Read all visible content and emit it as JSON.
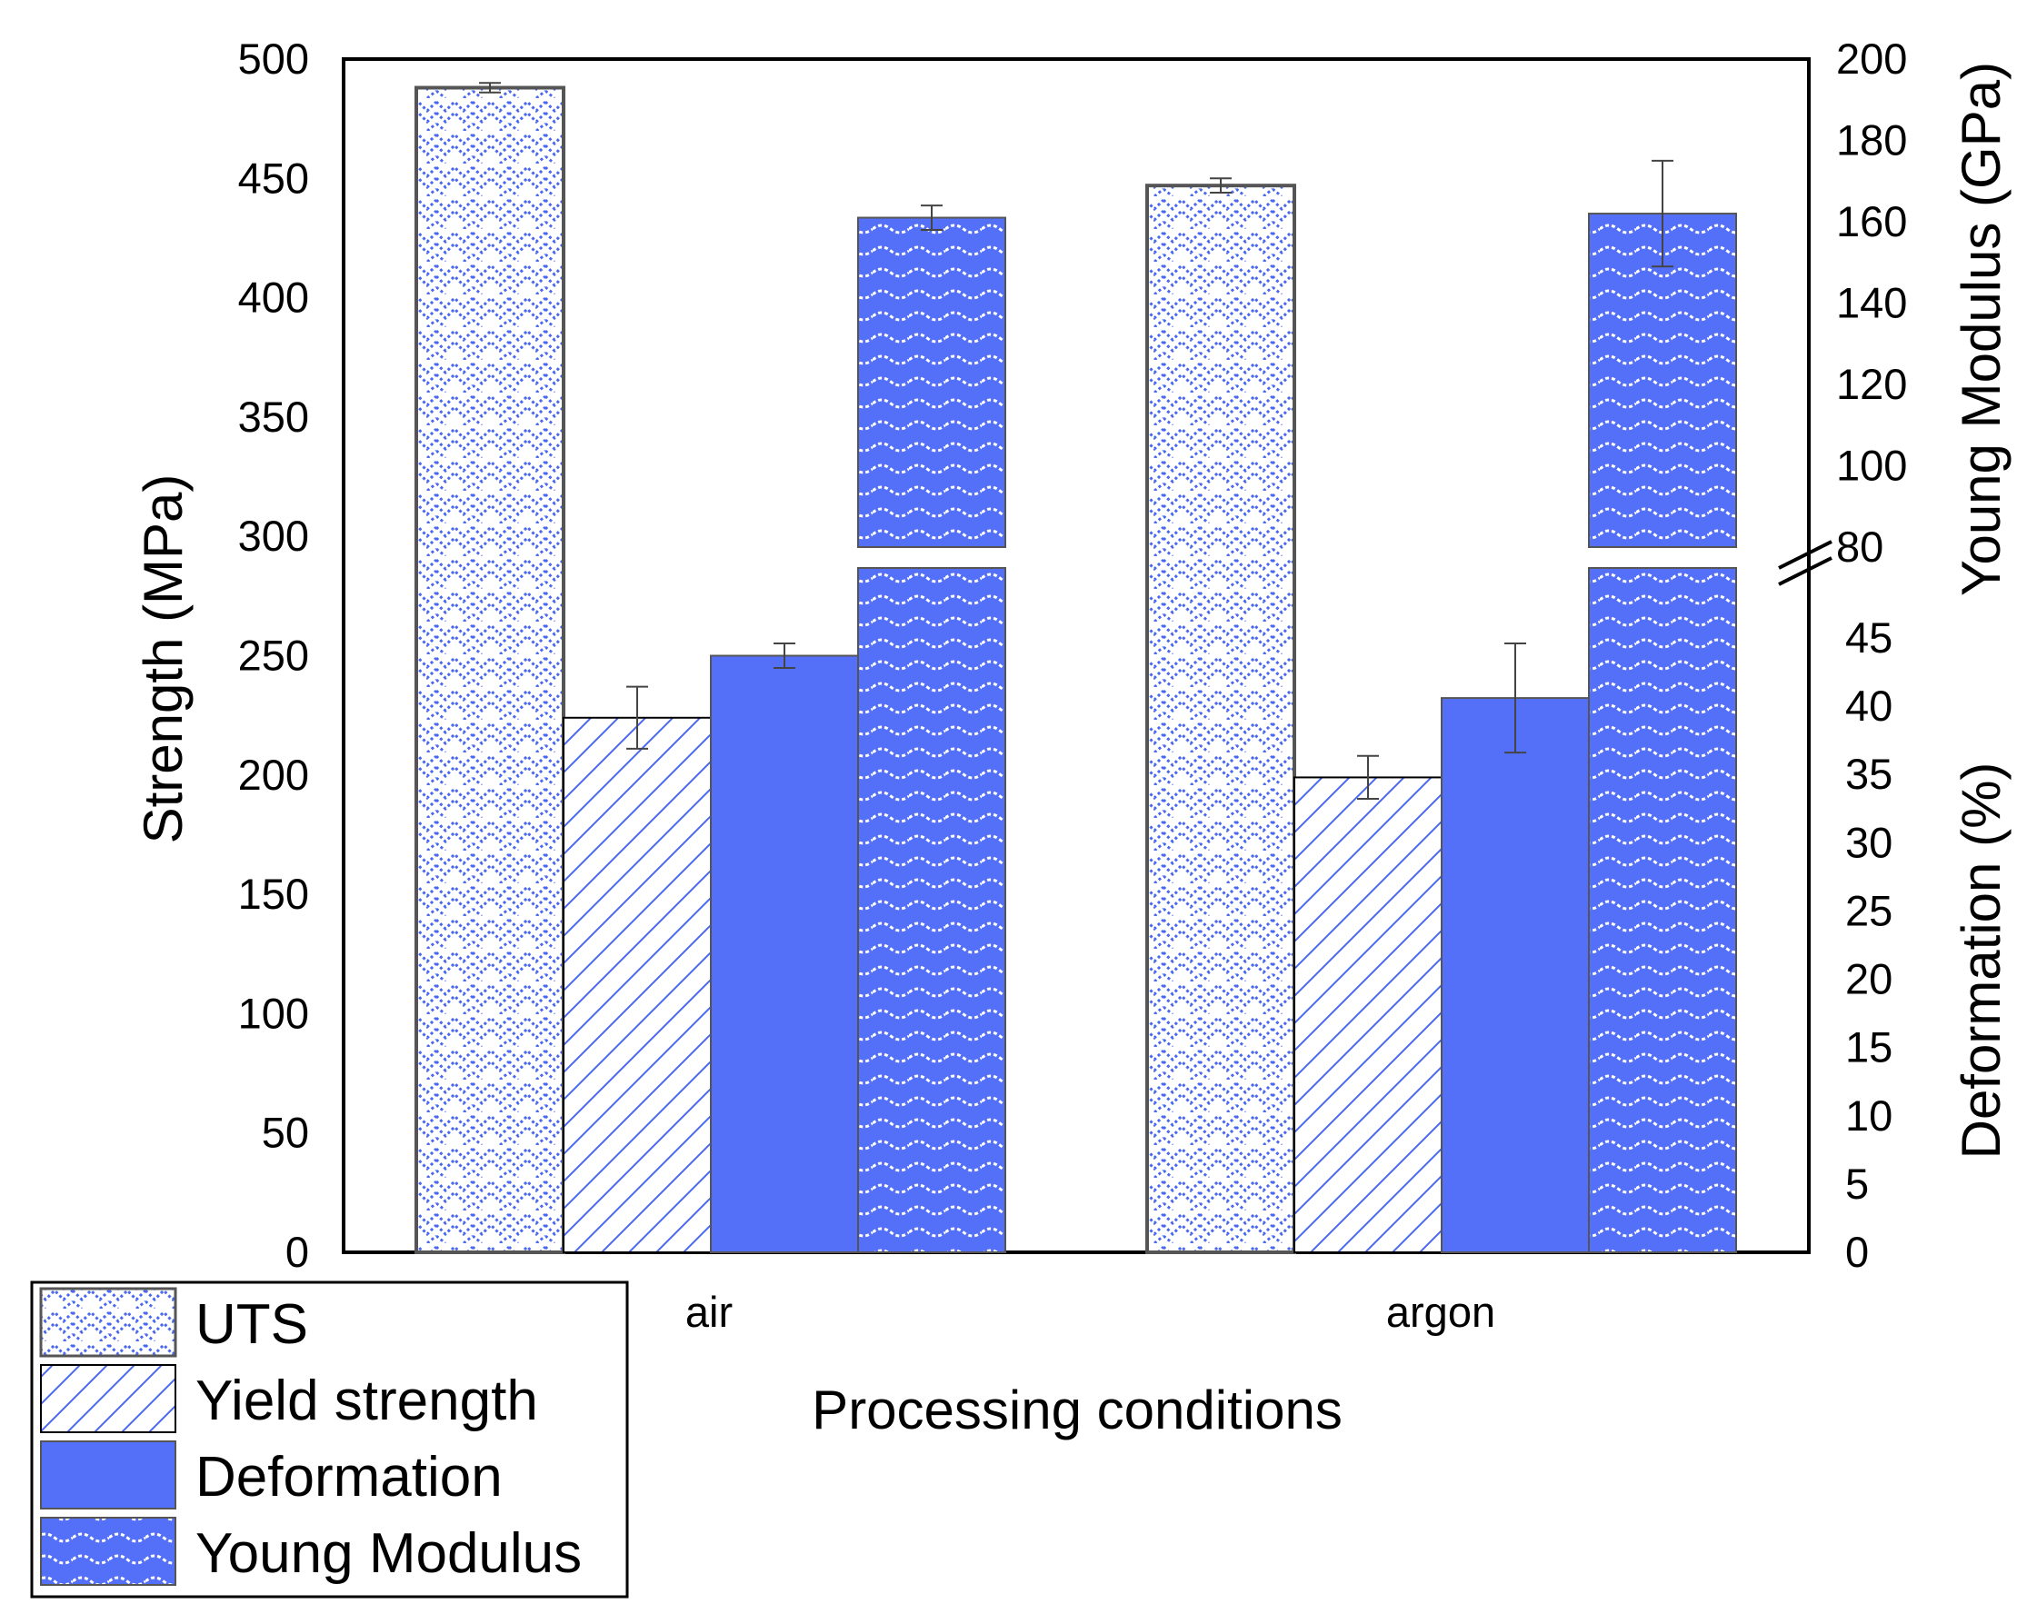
{
  "chart_data": {
    "type": "bar",
    "xlabel": "Processing conditions",
    "categories": [
      "air",
      "argon"
    ],
    "left_axis": {
      "label": "Strength (MPa)",
      "ylim": [
        0,
        500
      ],
      "ticks": [
        "0",
        "50",
        "100",
        "150",
        "200",
        "250",
        "300",
        "350",
        "400",
        "450",
        "500"
      ]
    },
    "right_axis_upper": {
      "label": "Young Modulus (GPa)",
      "ylim": [
        80,
        200
      ],
      "ticks": [
        "80",
        "100",
        "120",
        "140",
        "160",
        "180",
        "200"
      ]
    },
    "right_axis_lower": {
      "label": "Deformation (%)",
      "ylim": [
        0,
        45
      ],
      "ticks": [
        "0",
        "5",
        "10",
        "15",
        "20",
        "25",
        "30",
        "35",
        "40",
        "45"
      ]
    },
    "axis_break": true,
    "series": [
      {
        "name": "UTS",
        "axis": "left",
        "values": [
          488,
          447
        ],
        "errors": [
          2,
          3
        ]
      },
      {
        "name": "Yield strength",
        "axis": "left",
        "values": [
          224,
          199
        ],
        "errors": [
          13,
          9
        ]
      },
      {
        "name": "Deformation",
        "axis": "right_lower",
        "values": [
          43.7,
          40.6
        ],
        "errors": [
          0.9,
          4
        ]
      },
      {
        "name": "Young Modulus",
        "axis": "right_upper",
        "values": [
          161,
          162
        ],
        "errors": [
          3,
          13
        ]
      }
    ],
    "legend": {
      "position": "bottom-left",
      "entries": [
        "UTS",
        "Yield strength",
        "Deformation",
        "Young Modulus"
      ]
    }
  },
  "colors": {
    "bar_blue": "#5470f8",
    "pattern_blue": "#4a68f0",
    "axis": "#000000",
    "error_bar": "#444444"
  }
}
